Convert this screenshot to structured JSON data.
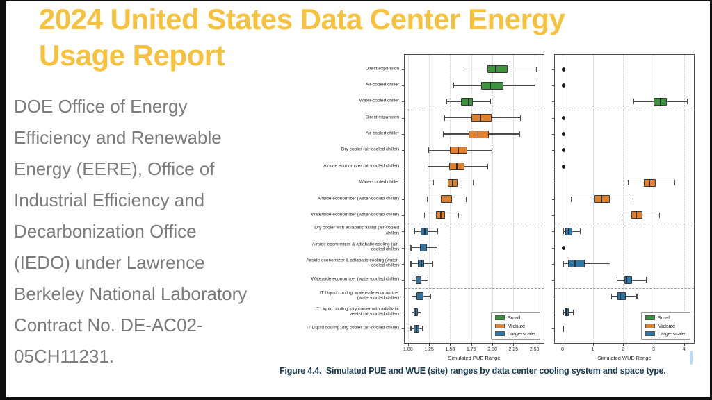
{
  "colors": {
    "title": "#F6C13D",
    "body_text": "#7B7B7B",
    "caption": "#17384E",
    "small_green": "#3D923D",
    "midsize_orange": "#E0812E",
    "large_scale_blue": "#2E76A6"
  },
  "slide": {
    "title": "2024 United States Data Center Energy Usage Report",
    "body": "DOE Office of Energy Efficiency and Renewable Energy (EERE), Office of Industrial Efficiency and Decarbonization Office (IEDO) under Lawrence Berkeley National Laboratory Contract No. DE-AC02-05CH11231."
  },
  "figure": {
    "caption": "Figure 4.4.  Simulated PUE and WUE (site) ranges by data center cooling system and space type."
  },
  "chart_data": [
    {
      "type": "box",
      "orientation": "horizontal",
      "title": "",
      "xlabel": "Simulated PUE Range",
      "ylabel": "",
      "xlim": [
        0.96,
        2.61
      ],
      "xticks": [
        1.0,
        1.25,
        1.5,
        1.75,
        2.0,
        2.25,
        2.5
      ],
      "xtick_labels": [
        "1.00",
        "1.25",
        "1.50",
        "1.75",
        "2.00",
        "2.25",
        "2.50"
      ],
      "grid": "vertical dotted",
      "legend_position": "lower right",
      "show_row_labels": true,
      "separators_after_rows": [
        3,
        10,
        14
      ],
      "legend": [
        {
          "label": "Small",
          "color": "#3D923D"
        },
        {
          "label": "Midsize",
          "color": "#E0812E"
        },
        {
          "label": "Large-scale",
          "color": "#2E76A6"
        }
      ],
      "rows": [
        {
          "label": "Direct expansion",
          "group": "Small",
          "box": [
            1.66,
            1.94,
            2.04,
            2.18,
            2.52
          ]
        },
        {
          "label": "Air-cooled chiller",
          "group": "Small",
          "box": [
            1.54,
            1.87,
            1.98,
            2.13,
            2.5
          ]
        },
        {
          "label": "Water-cooled chiller",
          "group": "Small",
          "box": [
            1.45,
            1.63,
            1.72,
            1.77,
            1.97
          ]
        },
        {
          "label": "Direct expansion",
          "group": "Midsize",
          "box": [
            1.43,
            1.75,
            1.86,
            1.99,
            2.33
          ]
        },
        {
          "label": "Air-cooled chiller",
          "group": "Midsize",
          "box": [
            1.41,
            1.72,
            1.83,
            1.96,
            2.32
          ]
        },
        {
          "label": "Dry cooler (air-cooled chiller)",
          "group": "Midsize",
          "box": [
            1.24,
            1.5,
            1.6,
            1.7,
            1.99
          ]
        },
        {
          "label": "Airside economizer (air-cooled chiller)",
          "group": "Midsize",
          "box": [
            1.23,
            1.49,
            1.58,
            1.67,
            1.94
          ]
        },
        {
          "label": "Water-cooled chiller",
          "group": "Midsize",
          "box": [
            1.3,
            1.47,
            1.53,
            1.59,
            1.77
          ]
        },
        {
          "label": "Airside economizer (water-cooled chiller)",
          "group": "Midsize",
          "box": [
            1.22,
            1.39,
            1.45,
            1.52,
            1.69
          ]
        },
        {
          "label": "Waterside economizer (water-cooled chiller)",
          "group": "Midsize",
          "box": [
            1.19,
            1.33,
            1.39,
            1.44,
            1.59
          ]
        },
        {
          "label": "Dry cooler with adiabatic assist (air-cooled chiller)",
          "group": "Large-scale",
          "box": [
            1.07,
            1.15,
            1.2,
            1.24,
            1.35
          ]
        },
        {
          "label": "Airside economizer & adiabatic cooling (air-cooled chiller)",
          "group": "Large-scale",
          "box": [
            1.03,
            1.14,
            1.18,
            1.22,
            1.34
          ]
        },
        {
          "label": "Airside economizer & adiabatic cooling (water-cooled chiller)",
          "group": "Large-scale",
          "box": [
            1.03,
            1.12,
            1.16,
            1.19,
            1.29
          ]
        },
        {
          "label": "Waterside economizer (water-cooled chiller)",
          "group": "Large-scale",
          "box": [
            1.04,
            1.09,
            1.13,
            1.16,
            1.23
          ]
        },
        {
          "label": "IT Liquid cooling: waterside economizer (water-cooled chiller)",
          "group": "Large-scale",
          "box": [
            1.04,
            1.1,
            1.13,
            1.18,
            1.26
          ]
        },
        {
          "label": "IT Liquid cooling: dry cooler with adiabatic assist (air-cooled chiller)",
          "group": "Large-scale",
          "box": [
            1.04,
            1.07,
            1.09,
            1.12,
            1.15
          ]
        },
        {
          "label": "IT Liquid cooling: dry cooler (air-cooled chiller)",
          "group": "Large-scale",
          "box": [
            1.03,
            1.07,
            1.1,
            1.13,
            1.17
          ]
        }
      ]
    },
    {
      "type": "box",
      "orientation": "horizontal",
      "title": "",
      "xlabel": "Simulated WUE Range",
      "ylabel": "",
      "xlim": [
        -0.25,
        4.33
      ],
      "xticks": [
        0,
        1,
        2,
        3,
        4
      ],
      "xtick_labels": [
        "0",
        "1",
        "2",
        "3",
        "4"
      ],
      "grid": "vertical dotted",
      "legend_position": "lower right",
      "show_row_labels": false,
      "separators_after_rows": [
        3,
        10,
        14
      ],
      "legend": [
        {
          "label": "Small",
          "color": "#3D923D"
        },
        {
          "label": "Midsize",
          "color": "#E0812E"
        },
        {
          "label": "Large-scale",
          "color": "#2E76A6"
        }
      ],
      "rows": [
        {
          "label": "Direct expansion",
          "group": "Small",
          "dot": 0.03
        },
        {
          "label": "Air-cooled chiller",
          "group": "Small",
          "dot": 0.03
        },
        {
          "label": "Water-cooled chiller",
          "group": "Small",
          "box": [
            2.33,
            3.0,
            3.22,
            3.44,
            4.1
          ]
        },
        {
          "label": "Direct expansion",
          "group": "Midsize",
          "dot": 0.03
        },
        {
          "label": "Air-cooled chiller",
          "group": "Midsize",
          "dot": 0.03
        },
        {
          "label": "Dry cooler (air-cooled chiller)",
          "group": "Midsize",
          "dot": 0.03
        },
        {
          "label": "Airside economizer (air-cooled chiller)",
          "group": "Midsize",
          "dot": 0.03
        },
        {
          "label": "Water-cooled chiller",
          "group": "Midsize",
          "box": [
            2.15,
            2.68,
            2.88,
            3.08,
            3.68
          ]
        },
        {
          "label": "Airside economizer (water-cooled chiller)",
          "group": "Midsize",
          "box": [
            0.27,
            1.05,
            1.29,
            1.57,
            2.31
          ]
        },
        {
          "label": "Waterside economizer (water-cooled chiller)",
          "group": "Midsize",
          "box": [
            1.95,
            2.28,
            2.44,
            2.64,
            3.18
          ]
        },
        {
          "label": "Dry cooler with adiabatic assist (air-cooled chiller)",
          "group": "Large-scale",
          "box": [
            0.02,
            0.1,
            0.2,
            0.32,
            0.57
          ]
        },
        {
          "label": "Airside economizer & adiabatic cooling (air-cooled chiller)",
          "group": "Large-scale",
          "dot": 0.03
        },
        {
          "label": "Airside economizer & adiabatic cooling (water-cooled chiller)",
          "group": "Large-scale",
          "box": [
            0.02,
            0.19,
            0.41,
            0.73,
            1.55
          ]
        },
        {
          "label": "Waterside economizer (water-cooled chiller)",
          "group": "Large-scale",
          "box": [
            1.79,
            2.03,
            2.12,
            2.29,
            2.76
          ]
        },
        {
          "label": "IT Liquid cooling: waterside economizer (water-cooled chiller)",
          "group": "Large-scale",
          "box": [
            1.6,
            1.8,
            1.91,
            2.08,
            2.44
          ]
        },
        {
          "label": "IT Liquid cooling: dry cooler with adiabatic assist (air-cooled chiller)",
          "group": "Large-scale",
          "box": [
            0.02,
            0.06,
            0.12,
            0.2,
            0.35
          ]
        },
        {
          "label": "IT Liquid cooling: dry cooler (air-cooled chiller)",
          "group": "Large-scale",
          "line": 0.02
        }
      ]
    }
  ]
}
